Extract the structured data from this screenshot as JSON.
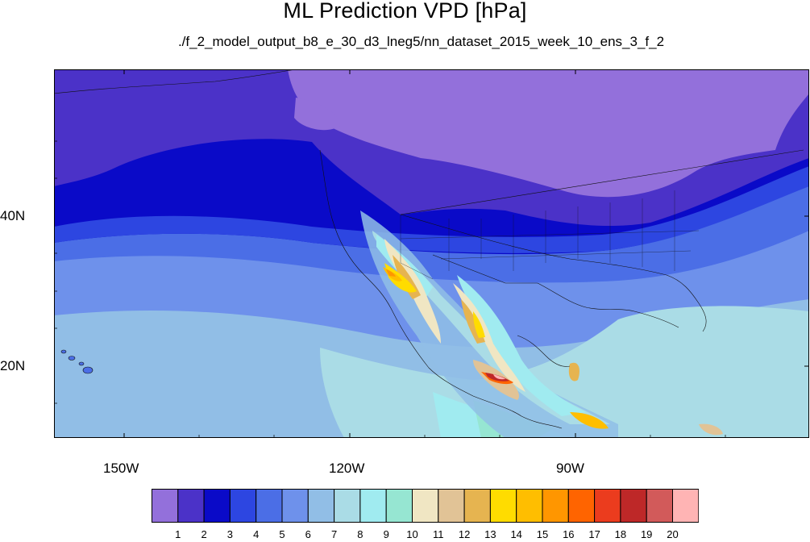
{
  "title": "ML Prediction VPD [hPa]",
  "subtitle": "./f_2_model_output_b8_e_30_d3_lneg5/nn_dataset_2015_week_10_ens_3_f_2",
  "map": {
    "lat_labels": [
      {
        "key": "40N",
        "text": "40N"
      },
      {
        "key": "20N",
        "text": "20N"
      }
    ],
    "lon_labels": [
      {
        "key": "150W",
        "text": "150W"
      },
      {
        "key": "120W",
        "text": "120W"
      },
      {
        "key": "90W",
        "text": "90W"
      }
    ]
  },
  "colorbar": {
    "colors": [
      "#9370db",
      "#4b32c8",
      "#0a0ac8",
      "#2d46e1",
      "#4b6ee6",
      "#6e91eb",
      "#91bee6",
      "#aadce6",
      "#a0ebf0",
      "#96e6d2",
      "#f0e6c3",
      "#e1c396",
      "#e6b450",
      "#ffdc00",
      "#ffbe00",
      "#ff9600",
      "#ff6400",
      "#eb3c1e",
      "#be2828",
      "#d25a5a",
      "#ffb4b4"
    ],
    "labels": [
      "1",
      "2",
      "3",
      "4",
      "5",
      "6",
      "7",
      "8",
      "9",
      "10",
      "11",
      "12",
      "13",
      "14",
      "15",
      "16",
      "17",
      "18",
      "19",
      "20"
    ]
  }
}
